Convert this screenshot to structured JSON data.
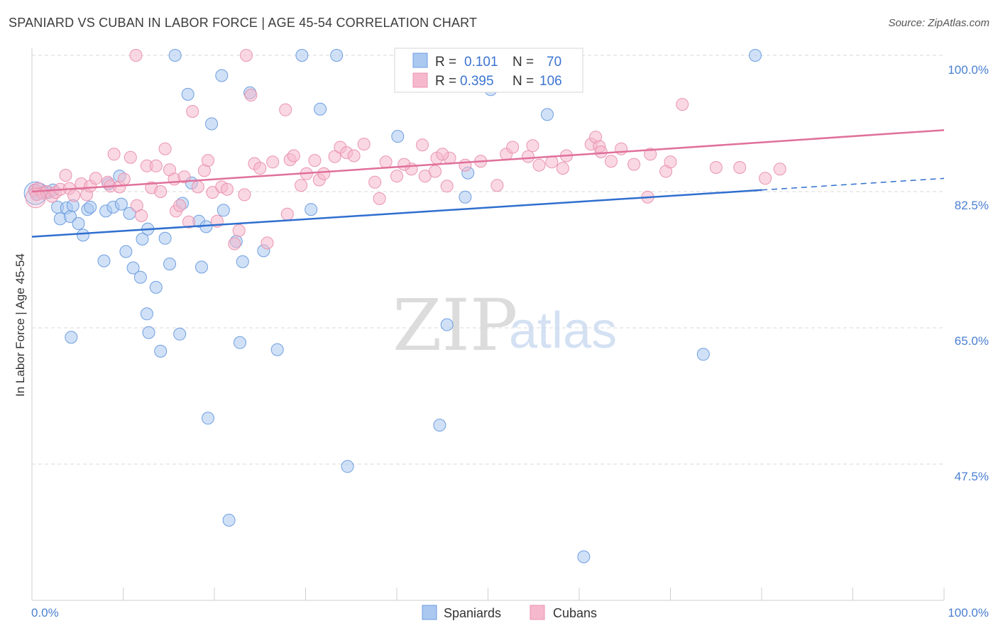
{
  "title": "SPANIARD VS CUBAN IN LABOR FORCE | AGE 45-54 CORRELATION CHART",
  "source": "Source: ZipAtlas.com",
  "watermark": {
    "zip": "ZIP",
    "atlas": "atlas"
  },
  "legend": {
    "r_label": "R =",
    "n_label": "N =",
    "rows": [
      {
        "r": "0.101",
        "n": "70"
      },
      {
        "r": "0.395",
        "n": "106"
      }
    ]
  },
  "bottom_legend": [
    "Spaniards",
    "Cubans"
  ],
  "colors": {
    "spaniards_fill": "#aac8f0",
    "spaniards_stroke": "#6f9ee0",
    "spaniards_line": "#2f6fcf",
    "cubans_fill": "#f6b8cc",
    "cubans_stroke": "#e994b0",
    "cubans_line": "#e0709a",
    "tick_text": "#4a7fd1",
    "grid": "#d9d9d9"
  },
  "chart_data": {
    "type": "scatter",
    "title": "SPANIARD VS CUBAN IN LABOR FORCE | AGE 45-54 CORRELATION CHART",
    "xlabel": "",
    "ylabel": "In Labor Force | Age 45-54",
    "xlim": [
      0,
      100
    ],
    "ylim": [
      32,
      102
    ],
    "x_tick_labels": [
      "0.0%",
      "100.0%"
    ],
    "y_ticks": [
      47.5,
      65.0,
      82.5,
      100.0
    ],
    "y_tick_labels": [
      "47.5%",
      "65.0%",
      "82.5%",
      "100.0%"
    ],
    "grid": "horizontal dashed",
    "legend_placement": "top-center",
    "series": [
      {
        "name": "Spaniards",
        "r": 0.101,
        "n": 70,
        "trend": {
          "x": [
            0,
            80
          ],
          "y": [
            76.7,
            82.7
          ],
          "dashed_extension": {
            "x": [
              80,
              100
            ],
            "y": [
              82.7,
              84.2
            ]
          }
        },
        "points": [
          [
            0.3,
            82.6
          ],
          [
            0.6,
            82.2
          ],
          [
            0.9,
            82.8
          ],
          [
            1.3,
            82.4
          ],
          [
            1.8,
            82.4
          ],
          [
            2.3,
            82.7
          ],
          [
            2.8,
            80.5
          ],
          [
            3.1,
            79.0
          ],
          [
            3.8,
            80.4
          ],
          [
            4.2,
            79.3
          ],
          [
            4.5,
            80.7
          ],
          [
            5.1,
            78.4
          ],
          [
            5.6,
            76.9
          ],
          [
            6.1,
            80.2
          ],
          [
            6.4,
            80.5
          ],
          [
            7.9,
            73.6
          ],
          [
            8.1,
            80.0
          ],
          [
            8.9,
            80.5
          ],
          [
            8.4,
            83.5
          ],
          [
            9.6,
            84.5
          ],
          [
            9.8,
            80.9
          ],
          [
            10.3,
            74.8
          ],
          [
            10.7,
            79.7
          ],
          [
            11.1,
            72.7
          ],
          [
            12.1,
            76.4
          ],
          [
            12.6,
            66.8
          ],
          [
            12.8,
            64.4
          ],
          [
            13.6,
            70.2
          ],
          [
            14.1,
            62.0
          ],
          [
            14.6,
            76.5
          ],
          [
            15.1,
            73.2
          ],
          [
            16.2,
            64.2
          ],
          [
            16.5,
            81.0
          ],
          [
            17.1,
            95.0
          ],
          [
            17.5,
            83.6
          ],
          [
            18.3,
            78.7
          ],
          [
            18.6,
            72.8
          ],
          [
            19.1,
            78.0
          ],
          [
            19.3,
            53.4
          ],
          [
            19.7,
            91.2
          ],
          [
            20.8,
            97.4
          ],
          [
            21.0,
            80.1
          ],
          [
            21.6,
            40.3
          ],
          [
            22.4,
            76.1
          ],
          [
            22.8,
            63.1
          ],
          [
            23.1,
            73.5
          ],
          [
            23.9,
            95.2
          ],
          [
            25.4,
            74.9
          ],
          [
            26.9,
            62.2
          ],
          [
            29.6,
            100.0
          ],
          [
            30.6,
            80.2
          ],
          [
            31.6,
            93.1
          ],
          [
            33.4,
            100.0
          ],
          [
            34.6,
            47.2
          ],
          [
            40.1,
            89.6
          ],
          [
            44.7,
            52.5
          ],
          [
            45.5,
            65.4
          ],
          [
            47.5,
            81.8
          ],
          [
            47.8,
            84.9
          ],
          [
            50.3,
            95.6
          ],
          [
            55.3,
            100.0
          ],
          [
            56.5,
            92.4
          ],
          [
            60.5,
            35.6
          ],
          [
            73.6,
            61.6
          ],
          [
            79.3,
            100.0
          ],
          [
            15.7,
            100.0
          ],
          [
            41.0,
            100.0
          ],
          [
            12.7,
            77.7
          ],
          [
            4.3,
            63.8
          ],
          [
            11.9,
            71.5
          ]
        ]
      },
      {
        "name": "Cubans",
        "r": 0.395,
        "n": 106,
        "trend": {
          "x": [
            0,
            100
          ],
          "y": [
            82.5,
            90.4
          ]
        },
        "points": [
          [
            0.3,
            82.7
          ],
          [
            0.5,
            82.1
          ],
          [
            0.7,
            82.9
          ],
          [
            1.2,
            82.3
          ],
          [
            1.6,
            82.5
          ],
          [
            2.2,
            81.9
          ],
          [
            2.6,
            82.4
          ],
          [
            3.1,
            82.8
          ],
          [
            3.7,
            84.6
          ],
          [
            4.1,
            82.9
          ],
          [
            4.6,
            82.0
          ],
          [
            5.4,
            83.5
          ],
          [
            6.0,
            82.1
          ],
          [
            6.4,
            83.2
          ],
          [
            7.0,
            84.2
          ],
          [
            8.3,
            83.7
          ],
          [
            8.6,
            83.2
          ],
          [
            9.0,
            87.3
          ],
          [
            9.6,
            83.1
          ],
          [
            10.1,
            84.1
          ],
          [
            10.8,
            86.9
          ],
          [
            11.5,
            80.7
          ],
          [
            12.0,
            79.4
          ],
          [
            12.6,
            85.8
          ],
          [
            13.1,
            83.0
          ],
          [
            13.6,
            85.8
          ],
          [
            14.1,
            82.5
          ],
          [
            14.6,
            88.0
          ],
          [
            15.1,
            85.3
          ],
          [
            15.6,
            84.1
          ],
          [
            15.8,
            80.0
          ],
          [
            16.2,
            80.7
          ],
          [
            16.7,
            84.4
          ],
          [
            17.2,
            78.6
          ],
          [
            17.6,
            92.8
          ],
          [
            18.2,
            83.1
          ],
          [
            18.9,
            85.2
          ],
          [
            19.3,
            86.5
          ],
          [
            19.8,
            82.4
          ],
          [
            20.3,
            78.7
          ],
          [
            20.8,
            83.1
          ],
          [
            21.4,
            82.8
          ],
          [
            22.2,
            75.8
          ],
          [
            22.7,
            77.5
          ],
          [
            23.3,
            82.1
          ],
          [
            24.0,
            94.9
          ],
          [
            24.4,
            86.1
          ],
          [
            25.0,
            85.5
          ],
          [
            25.8,
            75.9
          ],
          [
            26.4,
            86.3
          ],
          [
            27.8,
            93.0
          ],
          [
            28.0,
            79.6
          ],
          [
            28.3,
            86.6
          ],
          [
            28.7,
            87.1
          ],
          [
            29.5,
            83.3
          ],
          [
            30.1,
            84.8
          ],
          [
            31.0,
            86.5
          ],
          [
            31.5,
            84.0
          ],
          [
            32.0,
            84.8
          ],
          [
            33.2,
            87.0
          ],
          [
            33.8,
            88.2
          ],
          [
            34.5,
            87.5
          ],
          [
            35.3,
            87.1
          ],
          [
            36.4,
            88.6
          ],
          [
            38.1,
            81.6
          ],
          [
            38.8,
            86.3
          ],
          [
            40.0,
            84.5
          ],
          [
            41.6,
            85.4
          ],
          [
            42.8,
            88.5
          ],
          [
            43.1,
            84.5
          ],
          [
            44.2,
            85.1
          ],
          [
            45.5,
            83.2
          ],
          [
            45.8,
            86.8
          ],
          [
            47.5,
            85.9
          ],
          [
            49.2,
            86.4
          ],
          [
            51.0,
            83.3
          ],
          [
            52.0,
            87.3
          ],
          [
            52.7,
            88.2
          ],
          [
            54.4,
            87.0
          ],
          [
            54.9,
            88.4
          ],
          [
            55.6,
            85.9
          ],
          [
            57.0,
            86.3
          ],
          [
            58.2,
            85.5
          ],
          [
            58.6,
            87.1
          ],
          [
            61.3,
            88.6
          ],
          [
            61.8,
            89.5
          ],
          [
            62.2,
            88.3
          ],
          [
            62.4,
            87.6
          ],
          [
            63.5,
            86.4
          ],
          [
            64.6,
            88.0
          ],
          [
            66.0,
            86.0
          ],
          [
            67.5,
            81.8
          ],
          [
            67.8,
            87.3
          ],
          [
            69.5,
            85.1
          ],
          [
            70.0,
            86.3
          ],
          [
            71.3,
            93.7
          ],
          [
            75.0,
            85.6
          ],
          [
            77.6,
            85.6
          ],
          [
            80.4,
            84.2
          ],
          [
            82.0,
            85.4
          ],
          [
            11.4,
            100.0
          ],
          [
            37.6,
            83.7
          ],
          [
            40.8,
            86.0
          ],
          [
            44.4,
            86.8
          ],
          [
            45.0,
            87.3
          ],
          [
            23.5,
            100.0
          ]
        ]
      }
    ]
  },
  "axis": {
    "y_title": "In Labor Force | Age 45-54",
    "x_left_label": "0.0%",
    "x_right_label": "100.0%",
    "y_labels": [
      "100.0%",
      "82.5%",
      "65.0%",
      "47.5%"
    ]
  }
}
